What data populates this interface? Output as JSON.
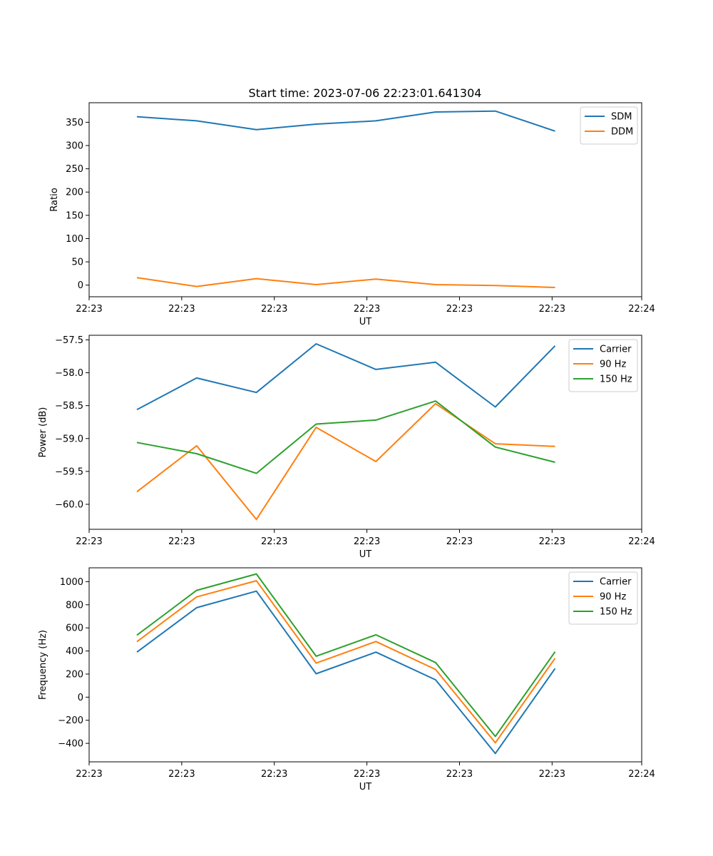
{
  "figure_title": "Start time: 2023-07-06 22:23:01.641304",
  "chart_data": [
    {
      "type": "line",
      "title": "Start time: 2023-07-06 22:23:01.641304",
      "xlabel": "UT",
      "ylabel": "Ratio",
      "x": [
        1,
        2,
        3,
        4,
        5,
        6,
        7,
        8
      ],
      "xlim": [
        0.2,
        9.45
      ],
      "ylim": [
        -25,
        392
      ],
      "yticks": [
        0,
        50,
        100,
        150,
        200,
        250,
        300,
        350
      ],
      "yticklabels": [
        "0",
        "50",
        "100",
        "150",
        "200",
        "250",
        "300",
        "350"
      ],
      "xticks": [
        0.2,
        1.75,
        3.3,
        4.85,
        6.4,
        7.95,
        9.45
      ],
      "xticklabels": [
        "22:23",
        "22:23",
        "22:23",
        "22:23",
        "22:23",
        "22:23",
        "22:24"
      ],
      "legend_loc": "top-right",
      "series": [
        {
          "name": "SDM",
          "color": "#1f77b4",
          "values": [
            362,
            353,
            334,
            346,
            353,
            372,
            374,
            331
          ]
        },
        {
          "name": "DDM",
          "color": "#ff7f0e",
          "values": [
            16,
            -3,
            14,
            1,
            13,
            1,
            -1,
            -5
          ]
        }
      ]
    },
    {
      "type": "line",
      "xlabel": "UT",
      "ylabel": "Power (dB)",
      "x": [
        1,
        2,
        3,
        4,
        5,
        6,
        7,
        8
      ],
      "xlim": [
        0.2,
        9.45
      ],
      "ylim": [
        -60.38,
        -57.43
      ],
      "yticks": [
        -60.0,
        -59.5,
        -59.0,
        -58.5,
        -58.0,
        -57.5
      ],
      "yticklabels": [
        "−60.0",
        "−59.5",
        "−59.0",
        "−58.5",
        "−58.0",
        "−57.5"
      ],
      "xticks": [
        0.2,
        1.75,
        3.3,
        4.85,
        6.4,
        7.95,
        9.45
      ],
      "xticklabels": [
        "22:23",
        "22:23",
        "22:23",
        "22:23",
        "22:23",
        "22:23",
        "22:24"
      ],
      "legend_loc": "top-right",
      "series": [
        {
          "name": "Carrier",
          "color": "#1f77b4",
          "values": [
            -58.56,
            -58.08,
            -58.3,
            -57.56,
            -57.95,
            -57.84,
            -58.52,
            -57.59
          ]
        },
        {
          "name": "90 Hz",
          "color": "#ff7f0e",
          "values": [
            -59.81,
            -59.11,
            -60.23,
            -58.83,
            -59.35,
            -58.47,
            -59.08,
            -59.12
          ]
        },
        {
          "name": "150 Hz",
          "color": "#2ca02c",
          "values": [
            -59.06,
            -59.23,
            -59.53,
            -58.78,
            -58.72,
            -58.43,
            -59.13,
            -59.36
          ]
        }
      ]
    },
    {
      "type": "line",
      "xlabel": "UT",
      "ylabel": "Frequency (Hz)",
      "x": [
        1,
        2,
        3,
        4,
        5,
        6,
        7,
        8
      ],
      "xlim": [
        0.2,
        9.45
      ],
      "ylim": [
        -560,
        1120
      ],
      "yticks": [
        -400,
        -200,
        0,
        200,
        400,
        600,
        800,
        1000
      ],
      "yticklabels": [
        "−400",
        "−200",
        "0",
        "200",
        "400",
        "600",
        "800",
        "1000"
      ],
      "xticks": [
        0.2,
        1.75,
        3.3,
        4.85,
        6.4,
        7.95,
        9.45
      ],
      "xticklabels": [
        "22:23",
        "22:23",
        "22:23",
        "22:23",
        "22:23",
        "22:23",
        "22:24"
      ],
      "legend_loc": "top-right",
      "series": [
        {
          "name": "Carrier",
          "color": "#1f77b4",
          "values": [
            390,
            775,
            918,
            203,
            390,
            150,
            -488,
            248
          ]
        },
        {
          "name": "90 Hz",
          "color": "#ff7f0e",
          "values": [
            480,
            868,
            1008,
            295,
            482,
            240,
            -395,
            337
          ]
        },
        {
          "name": "150 Hz",
          "color": "#2ca02c",
          "values": [
            537,
            925,
            1067,
            355,
            540,
            300,
            -340,
            393
          ]
        }
      ]
    }
  ]
}
